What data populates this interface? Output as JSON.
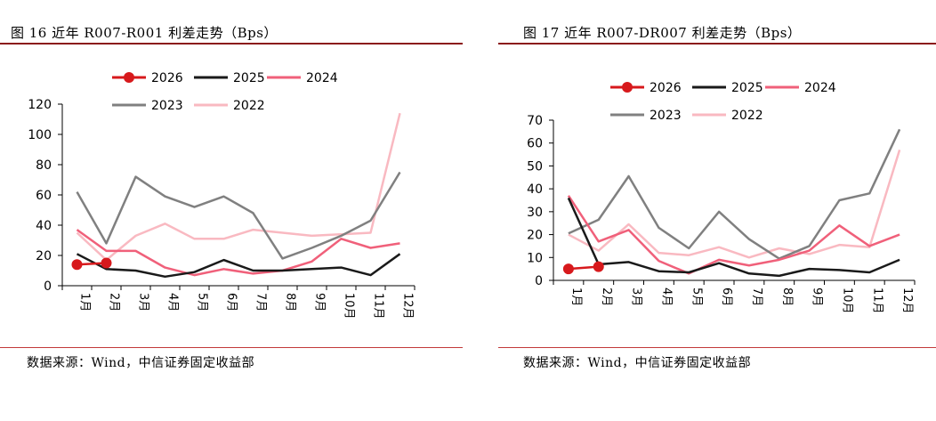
{
  "chart_data": [
    {
      "type": "line",
      "title": "图 16 近年 R007-R001 利差走势（Bps）",
      "source": "数据来源：Wind，中信证券固定收益部",
      "ylim": [
        0,
        120
      ],
      "yticks": [
        "0",
        "20",
        "40",
        "60",
        "80",
        "100",
        "120"
      ],
      "categories": [
        "1月",
        "2月",
        "3月",
        "4月",
        "5月",
        "6月",
        "7月",
        "8月",
        "9月",
        "10月",
        "11月",
        "12月"
      ],
      "series": [
        {
          "name": "2026",
          "color": "#d7191c",
          "markers": true,
          "values": [
            14,
            15,
            null,
            null,
            null,
            null,
            null,
            null,
            null,
            null,
            null,
            null
          ]
        },
        {
          "name": "2025",
          "color": "#1a1a1a",
          "markers": false,
          "values": [
            21,
            11,
            10,
            6,
            9,
            17,
            10,
            10,
            11,
            12,
            7,
            21
          ]
        },
        {
          "name": "2024",
          "color": "#f0607a",
          "markers": false,
          "values": [
            37,
            23,
            23,
            12,
            7,
            11,
            8,
            10,
            16,
            31,
            25,
            28
          ]
        },
        {
          "name": "2023",
          "color": "#808080",
          "markers": false,
          "values": [
            62,
            28,
            72,
            59,
            52,
            59,
            48,
            18,
            25,
            33,
            43,
            75
          ]
        },
        {
          "name": "2022",
          "color": "#f9b9c1",
          "markers": false,
          "values": [
            35,
            17,
            33,
            41,
            31,
            31,
            37,
            35,
            33,
            34,
            35,
            114
          ]
        }
      ]
    },
    {
      "type": "line",
      "title": "图 17 近年 R007-DR007 利差走势（Bps）",
      "source": "数据来源：Wind，中信证券固定收益部",
      "ylim": [
        0,
        70
      ],
      "yticks": [
        "0",
        "10",
        "20",
        "30",
        "40",
        "50",
        "60",
        "70"
      ],
      "categories": [
        "1月",
        "2月",
        "3月",
        "4月",
        "5月",
        "6月",
        "7月",
        "8月",
        "9月",
        "10月",
        "11月",
        "12月"
      ],
      "series": [
        {
          "name": "2026",
          "color": "#d7191c",
          "markers": true,
          "values": [
            5,
            6,
            null,
            null,
            null,
            null,
            null,
            null,
            null,
            null,
            null,
            null
          ]
        },
        {
          "name": "2025",
          "color": "#1a1a1a",
          "markers": false,
          "values": [
            36,
            7,
            8,
            4,
            3.5,
            7.5,
            3,
            2,
            5,
            4.5,
            3.5,
            9
          ]
        },
        {
          "name": "2024",
          "color": "#f0607a",
          "markers": false,
          "values": [
            37,
            17,
            22,
            8.5,
            3,
            9,
            6.5,
            9,
            13,
            24,
            15,
            20
          ]
        },
        {
          "name": "2023",
          "color": "#808080",
          "markers": false,
          "values": [
            20.5,
            26.5,
            45.5,
            23,
            14,
            30,
            18,
            9.5,
            15,
            35,
            38,
            66
          ]
        },
        {
          "name": "2022",
          "color": "#f9b9c1",
          "markers": false,
          "values": [
            20,
            13,
            24.5,
            12,
            11,
            14.5,
            10,
            14,
            11.5,
            15.5,
            14.5,
            57
          ]
        }
      ]
    }
  ]
}
